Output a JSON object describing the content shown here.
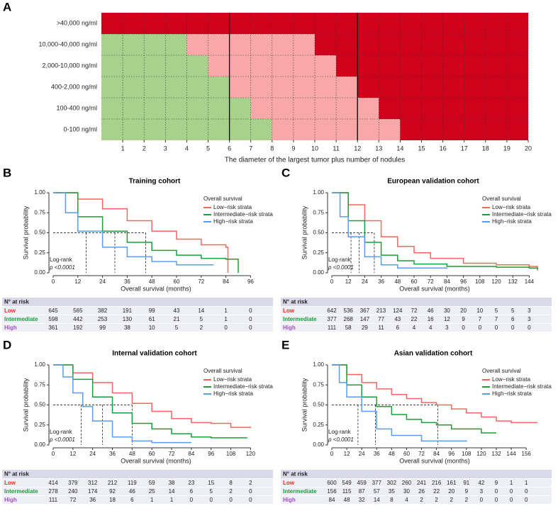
{
  "chart_data": [
    {
      "type": "heatmap",
      "panel": "A",
      "rows": [
        ">40,000 ng/ml",
        "10,000-40,000 ng/ml",
        "2,000-10,000 ng/ml",
        "400-2,000 ng/ml",
        "100-400 ng/ml",
        "0-100 ng/ml"
      ],
      "green_end": [
        0,
        4,
        5,
        6,
        7,
        8
      ],
      "pink_end": [
        0,
        10,
        11,
        12,
        13,
        14
      ],
      "colors": [
        "#a9d18e",
        "#f8a8a8",
        "#d0021b"
      ],
      "xlim": [
        0,
        20
      ],
      "xticks": [
        1,
        2,
        3,
        4,
        5,
        6,
        7,
        8,
        9,
        10,
        11,
        12,
        13,
        14,
        15,
        16,
        17,
        18,
        19,
        20
      ],
      "cutoffs": [
        6,
        12
      ],
      "grid": true,
      "x_label": "The diameter of the largest tumor plus number of nodules"
    },
    {
      "type": "km",
      "panel": "B",
      "title": "Training cohort",
      "x_label": "Overall survival (months)",
      "y_label": "Survival probability",
      "legend_title": "Overall survival",
      "annotation": "Log-rank",
      "pvalue": "p <0.0001",
      "xlim": [
        0,
        100
      ],
      "xticks": [
        0,
        12,
        24,
        36,
        48,
        60,
        72,
        84,
        96
      ],
      "ylim": [
        0,
        1
      ],
      "yticks": [
        {
          "value": 0,
          "label": "0.00"
        },
        {
          "value": 0.25,
          "label": "0.25"
        },
        {
          "value": 0.5,
          "label": "0.50"
        },
        {
          "value": 0.75,
          "label": "0.75"
        },
        {
          "value": 1,
          "label": "1.00"
        }
      ],
      "median_level": 0.5,
      "medians": [
        16,
        30,
        45
      ],
      "series": [
        {
          "name": "Low−risk strata",
          "color": "#f4665f",
          "x": [
            0,
            12,
            24,
            36,
            48,
            60,
            72,
            84,
            85
          ],
          "values": [
            1,
            0.92,
            0.8,
            0.65,
            0.52,
            0.42,
            0.35,
            0.32,
            0
          ]
        },
        {
          "name": "Intermediate−risk strata",
          "color": "#1a9e3a",
          "x": [
            0,
            12,
            24,
            36,
            48,
            60,
            72,
            84,
            90
          ],
          "values": [
            1,
            0.7,
            0.52,
            0.38,
            0.28,
            0.22,
            0.18,
            0.17,
            0
          ]
        },
        {
          "name": "High−risk strata",
          "color": "#5b9bf0",
          "x": [
            0,
            6,
            12,
            24,
            36,
            48,
            60,
            72,
            78
          ],
          "values": [
            1,
            0.75,
            0.52,
            0.32,
            0.2,
            0.14,
            0.1,
            0.1,
            0.1
          ]
        }
      ],
      "risk_table": {
        "title": "N° at risk",
        "rows": [
          {
            "name": "Low",
            "color": "#e03020",
            "values": [
              645,
              565,
              382,
              191,
              99,
              43,
              14,
              1,
              0
            ]
          },
          {
            "name": "Intermediate",
            "color": "#1a9e3a",
            "values": [
              598,
              442,
              253,
              130,
              61,
              21,
              5,
              1,
              0
            ]
          },
          {
            "name": "High",
            "color": "#a050c0",
            "values": [
              361,
              192,
              99,
              38,
              10,
              5,
              2,
              0,
              0
            ]
          }
        ]
      }
    },
    {
      "type": "km",
      "panel": "C",
      "title": "European validation cohort",
      "x_label": "Overall survival (months)",
      "y_label": "Survival probability",
      "legend_title": "Overall survival",
      "annotation": "Log-rank",
      "pvalue": "p <0.0001",
      "xlim": [
        0,
        150
      ],
      "xticks": [
        0,
        12,
        24,
        36,
        48,
        60,
        72,
        84,
        96,
        108,
        120,
        132,
        144
      ],
      "ylim": [
        0,
        1
      ],
      "yticks": [
        {
          "value": 0,
          "label": "0.00"
        },
        {
          "value": 0.25,
          "label": "0.25"
        },
        {
          "value": 0.5,
          "label": "0.50"
        },
        {
          "value": 0.75,
          "label": "0.75"
        },
        {
          "value": 1,
          "label": "1.00"
        }
      ],
      "median_level": 0.5,
      "medians": [
        14,
        20,
        31
      ],
      "series": [
        {
          "name": "Low−risk strata",
          "color": "#f4665f",
          "x": [
            0,
            12,
            24,
            36,
            48,
            60,
            72,
            96,
            120,
            144,
            150
          ],
          "values": [
            1,
            0.85,
            0.65,
            0.45,
            0.33,
            0.25,
            0.18,
            0.12,
            0.1,
            0.08,
            0.03
          ]
        },
        {
          "name": "Intermediate−risk strata",
          "color": "#1a9e3a",
          "x": [
            0,
            12,
            24,
            36,
            48,
            60,
            84,
            120,
            144,
            150
          ],
          "values": [
            1,
            0.65,
            0.38,
            0.22,
            0.15,
            0.11,
            0.08,
            0.07,
            0.06,
            0.04
          ]
        },
        {
          "name": "High−risk strata",
          "color": "#5b9bf0",
          "x": [
            0,
            6,
            12,
            24,
            36,
            48,
            84
          ],
          "values": [
            1,
            0.7,
            0.45,
            0.2,
            0.1,
            0.06,
            0.05
          ]
        }
      ],
      "risk_table": {
        "title": "N° at risk",
        "rows": [
          {
            "name": "Low",
            "color": "#e03020",
            "values": [
              642,
              536,
              367,
              213,
              124,
              72,
              46,
              30,
              20,
              10,
              5,
              5,
              3
            ]
          },
          {
            "name": "Intermediate",
            "color": "#1a9e3a",
            "values": [
              377,
              268,
              147,
              77,
              43,
              22,
              16,
              12,
              9,
              7,
              7,
              6,
              3
            ]
          },
          {
            "name": "High",
            "color": "#a050c0",
            "values": [
              111,
              58,
              29,
              11,
              6,
              4,
              4,
              3,
              0,
              0,
              0,
              0,
              0
            ]
          }
        ]
      }
    },
    {
      "type": "km",
      "panel": "D",
      "title": "Internal validation cohort",
      "x_label": "Overall survival (months)",
      "y_label": "Survival probability",
      "legend_title": "Overall survival",
      "annotation": "Log-rank",
      "pvalue": "p <0.0001",
      "xlim": [
        0,
        125
      ],
      "xticks": [
        0,
        12,
        24,
        36,
        48,
        60,
        72,
        84,
        96,
        108,
        120
      ],
      "ylim": [
        0,
        1
      ],
      "yticks": [
        {
          "value": 0,
          "label": "0.00"
        },
        {
          "value": 0.25,
          "label": "0.25"
        },
        {
          "value": 0.5,
          "label": "0.50"
        },
        {
          "value": 0.75,
          "label": "0.75"
        },
        {
          "value": 1,
          "label": "1.00"
        }
      ],
      "median_level": 0.5,
      "medians": [
        17,
        30,
        48
      ],
      "series": [
        {
          "name": "Low−risk strata",
          "color": "#f4665f",
          "x": [
            0,
            12,
            24,
            36,
            48,
            60,
            72,
            84,
            96,
            108,
            120
          ],
          "values": [
            1,
            0.9,
            0.78,
            0.65,
            0.52,
            0.42,
            0.33,
            0.28,
            0.27,
            0.22,
            0.21
          ]
        },
        {
          "name": "Intermediate−risk strata",
          "color": "#1a9e3a",
          "x": [
            0,
            12,
            24,
            36,
            48,
            60,
            72,
            84,
            96,
            118
          ],
          "values": [
            1,
            0.82,
            0.6,
            0.4,
            0.27,
            0.2,
            0.14,
            0.1,
            0.09,
            0.09
          ]
        },
        {
          "name": "High−risk strata",
          "color": "#5b9bf0",
          "x": [
            0,
            6,
            12,
            18,
            24,
            36,
            48,
            60,
            84
          ],
          "values": [
            1,
            0.85,
            0.65,
            0.48,
            0.3,
            0.1,
            0.05,
            0.03,
            0.03
          ]
        }
      ],
      "risk_table": {
        "title": "N° at risk",
        "rows": [
          {
            "name": "Low",
            "color": "#e03020",
            "values": [
              414,
              379,
              312,
              212,
              119,
              59,
              38,
              23,
              15,
              8,
              2
            ]
          },
          {
            "name": "Intermediate",
            "color": "#1a9e3a",
            "values": [
              278,
              240,
              174,
              92,
              46,
              25,
              14,
              6,
              5,
              2,
              0
            ]
          },
          {
            "name": "High",
            "color": "#a050c0",
            "values": [
              111,
              72,
              36,
              18,
              6,
              1,
              1,
              0,
              0,
              0,
              0
            ]
          }
        ]
      }
    },
    {
      "type": "km",
      "panel": "E",
      "title": "Asian validation cohort",
      "x_label": "Overall survival (months)",
      "y_label": "Survival probability",
      "legend_title": "Overall survival",
      "annotation": "Log-rank",
      "pvalue": "p <0.0001",
      "xlim": [
        0,
        165
      ],
      "xticks": [
        0,
        12,
        24,
        36,
        48,
        60,
        72,
        84,
        96,
        108,
        120,
        132,
        144,
        156
      ],
      "ylim": [
        0,
        1
      ],
      "yticks": [
        {
          "value": 0,
          "label": "0.00"
        },
        {
          "value": 0.25,
          "label": "0.25"
        },
        {
          "value": 0.5,
          "label": "0.50"
        },
        {
          "value": 0.75,
          "label": "0.75"
        },
        {
          "value": 1,
          "label": "1.00"
        }
      ],
      "median_level": 0.5,
      "medians": [
        21,
        35,
        85
      ],
      "series": [
        {
          "name": "Low−risk strata",
          "color": "#f4665f",
          "x": [
            0,
            12,
            24,
            36,
            48,
            60,
            72,
            84,
            96,
            108,
            120,
            132,
            144,
            165
          ],
          "values": [
            1,
            0.88,
            0.78,
            0.7,
            0.63,
            0.58,
            0.53,
            0.5,
            0.45,
            0.4,
            0.35,
            0.3,
            0.28,
            0.28
          ]
        },
        {
          "name": "Intermediate−risk strata",
          "color": "#1a9e3a",
          "x": [
            0,
            12,
            24,
            36,
            48,
            60,
            72,
            84,
            96,
            120,
            132
          ],
          "values": [
            1,
            0.75,
            0.6,
            0.48,
            0.38,
            0.32,
            0.28,
            0.25,
            0.2,
            0.15,
            0.15
          ]
        },
        {
          "name": "High−risk strata",
          "color": "#5b9bf0",
          "x": [
            0,
            6,
            12,
            24,
            36,
            48,
            72,
            108
          ],
          "values": [
            1,
            0.78,
            0.6,
            0.42,
            0.2,
            0.12,
            0.05,
            0.04
          ]
        }
      ],
      "risk_table": {
        "title": "N° at risk",
        "rows": [
          {
            "name": "Low",
            "color": "#e03020",
            "values": [
              600,
              549,
              459,
              377,
              302,
              260,
              241,
              216,
              161,
              91,
              42,
              9,
              1,
              1
            ]
          },
          {
            "name": "Intermediate",
            "color": "#1a9e3a",
            "values": [
              156,
              115,
              87,
              57,
              35,
              30,
              26,
              22,
              20,
              9,
              3,
              0,
              0,
              0
            ]
          },
          {
            "name": "High",
            "color": "#a050c0",
            "values": [
              84,
              48,
              32,
              14,
              8,
              4,
              2,
              2,
              2,
              2,
              0,
              0,
              0,
              0
            ]
          }
        ]
      }
    }
  ]
}
